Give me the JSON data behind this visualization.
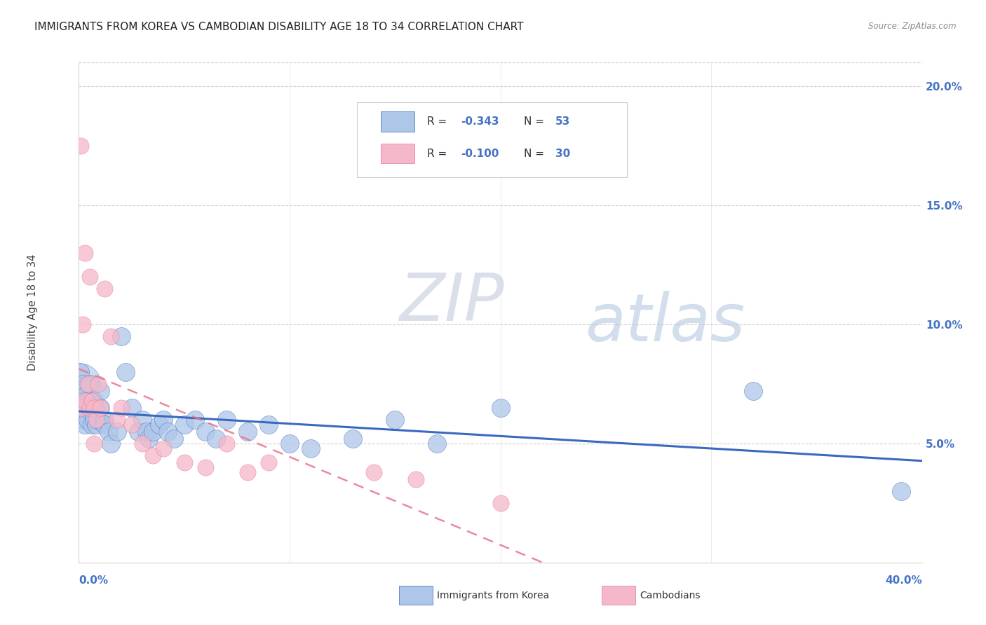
{
  "title": "IMMIGRANTS FROM KOREA VS CAMBODIAN DISABILITY AGE 18 TO 34 CORRELATION CHART",
  "source": "Source: ZipAtlas.com",
  "ylabel": "Disability Age 18 to 34",
  "watermark_zip": "ZIP",
  "watermark_atlas": "atlas",
  "korea_color": "#aec6e8",
  "cambodian_color": "#f5b8ca",
  "korea_line_color": "#3a6abf",
  "cambodian_line_color": "#e8758a",
  "axis_label_color": "#4472c4",
  "grid_color": "#d0d0d0",
  "title_color": "#222222",
  "korea_R": -0.343,
  "korea_N": 53,
  "cambodian_R": -0.1,
  "cambodian_N": 30,
  "xlim": [
    0.0,
    0.4
  ],
  "ylim": [
    0.0,
    0.21
  ],
  "yticks": [
    0.05,
    0.1,
    0.15,
    0.2
  ],
  "ytick_labels": [
    "5.0%",
    "10.0%",
    "15.0%",
    "20.0%"
  ],
  "korea_x": [
    0.0005,
    0.001,
    0.0015,
    0.002,
    0.002,
    0.003,
    0.003,
    0.003,
    0.004,
    0.004,
    0.005,
    0.005,
    0.006,
    0.006,
    0.007,
    0.007,
    0.008,
    0.008,
    0.009,
    0.01,
    0.01,
    0.012,
    0.012,
    0.014,
    0.015,
    0.018,
    0.02,
    0.022,
    0.025,
    0.028,
    0.03,
    0.032,
    0.033,
    0.035,
    0.038,
    0.04,
    0.042,
    0.045,
    0.05,
    0.055,
    0.06,
    0.065,
    0.07,
    0.08,
    0.09,
    0.1,
    0.11,
    0.13,
    0.15,
    0.17,
    0.2,
    0.32,
    0.39
  ],
  "korea_y": [
    0.08,
    0.072,
    0.068,
    0.075,
    0.06,
    0.07,
    0.065,
    0.058,
    0.068,
    0.06,
    0.075,
    0.065,
    0.063,
    0.058,
    0.068,
    0.06,
    0.065,
    0.058,
    0.06,
    0.072,
    0.065,
    0.06,
    0.058,
    0.055,
    0.05,
    0.055,
    0.095,
    0.08,
    0.065,
    0.055,
    0.06,
    0.055,
    0.052,
    0.055,
    0.058,
    0.06,
    0.055,
    0.052,
    0.058,
    0.06,
    0.055,
    0.052,
    0.06,
    0.055,
    0.058,
    0.05,
    0.048,
    0.052,
    0.06,
    0.05,
    0.065,
    0.072,
    0.03
  ],
  "cambodian_x": [
    0.001,
    0.001,
    0.002,
    0.003,
    0.003,
    0.004,
    0.005,
    0.005,
    0.006,
    0.007,
    0.007,
    0.008,
    0.009,
    0.01,
    0.012,
    0.015,
    0.018,
    0.02,
    0.025,
    0.03,
    0.035,
    0.04,
    0.05,
    0.06,
    0.07,
    0.08,
    0.09,
    0.14,
    0.16,
    0.2
  ],
  "cambodian_y": [
    0.175,
    0.065,
    0.1,
    0.13,
    0.068,
    0.075,
    0.12,
    0.065,
    0.068,
    0.065,
    0.05,
    0.06,
    0.075,
    0.065,
    0.115,
    0.095,
    0.06,
    0.065,
    0.058,
    0.05,
    0.045,
    0.048,
    0.042,
    0.04,
    0.05,
    0.038,
    0.042,
    0.038,
    0.035,
    0.025
  ]
}
